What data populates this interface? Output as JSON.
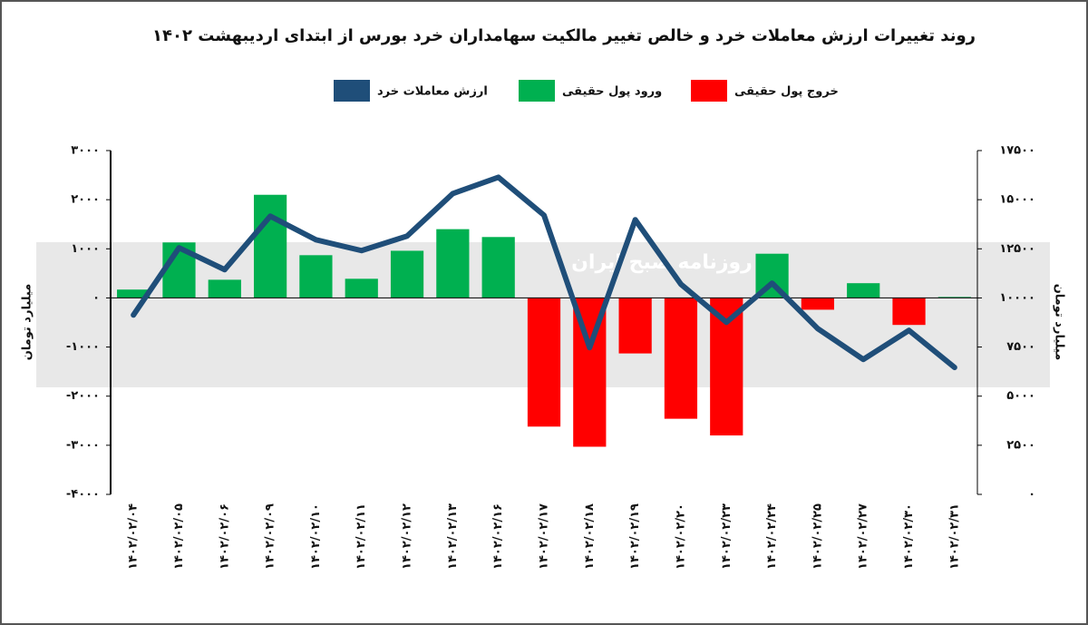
{
  "chart_data": {
    "type": "bar",
    "title": "روند تغییرات ارزش معاملات خرد و خالص تغییر مالکیت سهامداران خرد بورس از ابتدای اردیبهشت ۱۴۰۲",
    "watermark": "روزنامه صبح ایران",
    "categories": [
      "۱۴۰۲/۰۲/۰۴",
      "۱۴۰۲/۰۲/۰۵",
      "۱۴۰۲/۰۲/۰۶",
      "۱۴۰۲/۰۲/۰۹",
      "۱۴۰۲/۰۲/۱۰",
      "۱۴۰۲/۰۲/۱۱",
      "۱۴۰۲/۰۲/۱۲",
      "۱۴۰۲/۰۲/۱۳",
      "۱۴۰۲/۰۲/۱۶",
      "۱۴۰۲/۰۲/۱۷",
      "۱۴۰۲/۰۲/۱۸",
      "۱۴۰۲/۰۲/۱۹",
      "۱۴۰۲/۰۲/۲۰",
      "۱۴۰۲/۰۲/۲۳",
      "۱۴۰۲/۰۲/۲۴",
      "۱۴۰۲/۰۲/۲۵",
      "۱۴۰۲/۰۲/۲۷",
      "۱۴۰۲/۰۲/۳۰",
      "۱۴۰۲/۰۲/۳۱"
    ],
    "series": [
      {
        "name": "ارزش معاملات خرد",
        "type": "line",
        "axis": "y2",
        "color": "#1f4e79",
        "values": [
          9130,
          12550,
          11440,
          14160,
          12960,
          12410,
          13150,
          15310,
          16140,
          14210,
          7470,
          13980,
          10700,
          8760,
          10750,
          8440,
          6870,
          8350,
          6460
        ]
      },
      {
        "name": "ورود پول حقیقی",
        "type": "bar",
        "color": "#00b050",
        "values": [
          170,
          1130,
          370,
          2100,
          870,
          390,
          960,
          1400,
          1240,
          null,
          null,
          null,
          null,
          null,
          900,
          null,
          300,
          null,
          20
        ]
      },
      {
        "name": "خروج پول حقیقی",
        "type": "bar",
        "color": "#ff0000",
        "values": [
          null,
          null,
          null,
          null,
          null,
          null,
          null,
          null,
          null,
          -2620,
          -3030,
          -1130,
          -2460,
          -2800,
          null,
          -240,
          null,
          -550,
          null
        ]
      }
    ],
    "y_label": "میلیارد تومان",
    "y2_label": "میلیارد تومان",
    "ylim": [
      -4000,
      3000
    ],
    "yticks": [
      {
        "value": 3000,
        "label": "۳۰۰۰"
      },
      {
        "value": 2000,
        "label": "۲۰۰۰"
      },
      {
        "value": 1000,
        "label": "۱۰۰۰"
      },
      {
        "value": 0,
        "label": "۰"
      },
      {
        "value": -1000,
        "label": "-۱۰۰۰"
      },
      {
        "value": -2000,
        "label": "-۲۰۰۰"
      },
      {
        "value": -3000,
        "label": "-۳۰۰۰"
      },
      {
        "value": -4000,
        "label": "-۴۰۰۰"
      }
    ],
    "y2lim": [
      0,
      17500
    ],
    "y2ticks": [
      {
        "value": 17500,
        "label": "۱۷۵۰۰"
      },
      {
        "value": 15000,
        "label": "۱۵۰۰۰"
      },
      {
        "value": 12500,
        "label": "۱۲۵۰۰"
      },
      {
        "value": 10000,
        "label": "۱۰۰۰۰"
      },
      {
        "value": 7500,
        "label": "۷۵۰۰"
      },
      {
        "value": 5000,
        "label": "۵۰۰۰"
      },
      {
        "value": 2500,
        "label": "۲۵۰۰"
      },
      {
        "value": 0,
        "label": "۰"
      }
    ]
  }
}
